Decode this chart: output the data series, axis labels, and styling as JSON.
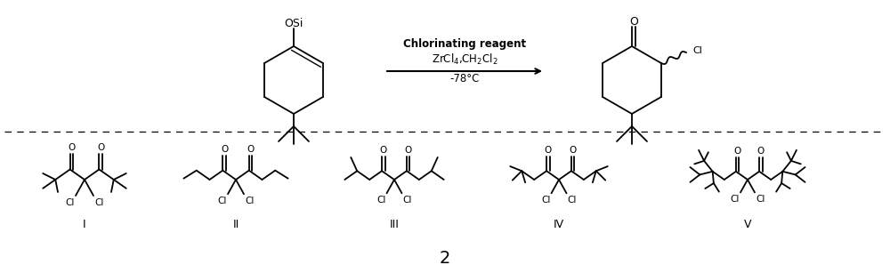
{
  "figure_width": 10.0,
  "figure_height": 3.07,
  "dpi": 100,
  "bg_color": "#ffffff",
  "line_color": "#000000",
  "line_width": 1.3,
  "compounds": [
    "I",
    "II",
    "III",
    "IV",
    "V"
  ],
  "label_2": "2",
  "top_reagent": "Chlorinating reagent",
  "top_conditions": "ZrCl$_4$,CH$_2$Cl$_2$",
  "top_temp": "-78°C"
}
